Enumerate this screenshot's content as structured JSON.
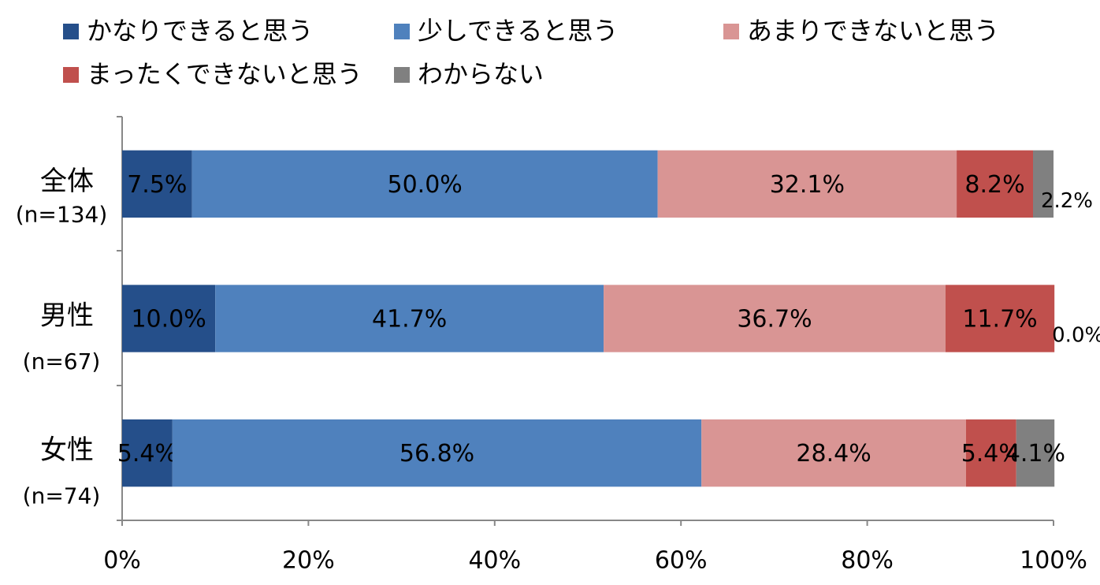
{
  "chart_data": {
    "type": "stacked-barh",
    "categories": [
      "全体",
      "男性",
      "女性"
    ],
    "category_sublabels": [
      "(n=134)",
      "(n=67)",
      "(n=74)"
    ],
    "series": [
      {
        "name": "かなりできると思う",
        "color": "#254F8A",
        "label_color": "#ffffff",
        "values": [
          7.5,
          10.0,
          5.4
        ],
        "value_labels": [
          "7.5%",
          "10.0%",
          "5.4%"
        ]
      },
      {
        "name": "少しできると思う",
        "color": "#4F81BD",
        "label_color": "#ffffff",
        "values": [
          50.0,
          41.7,
          56.8
        ],
        "value_labels": [
          "50.0%",
          "41.7%",
          "56.8%"
        ]
      },
      {
        "name": "あまりできないと思う",
        "color": "#D99594",
        "label_color": "#000000",
        "values": [
          32.1,
          36.7,
          28.4
        ],
        "value_labels": [
          "32.1%",
          "36.7%",
          "28.4%"
        ]
      },
      {
        "name": "まったくできないと思う",
        "color": "#C0504D",
        "label_color": "#000000",
        "values": [
          8.2,
          11.7,
          5.4
        ],
        "value_labels": [
          "8.2%",
          "11.7%",
          "5.4%"
        ]
      },
      {
        "name": "わからない",
        "color": "#808080",
        "label_color": "#000000",
        "values": [
          2.2,
          0.0,
          4.1
        ],
        "value_labels": [
          "2.2%",
          "0.0%",
          "4.1%"
        ]
      }
    ],
    "xlim": [
      0,
      100
    ],
    "xticks": [
      {
        "value": 0,
        "label": "0%"
      },
      {
        "value": 20,
        "label": "20%"
      },
      {
        "value": 40,
        "label": "40%"
      },
      {
        "value": 60,
        "label": "60%"
      },
      {
        "value": 80,
        "label": "80%"
      },
      {
        "value": 100,
        "label": "100%"
      }
    ],
    "legend": "top"
  }
}
